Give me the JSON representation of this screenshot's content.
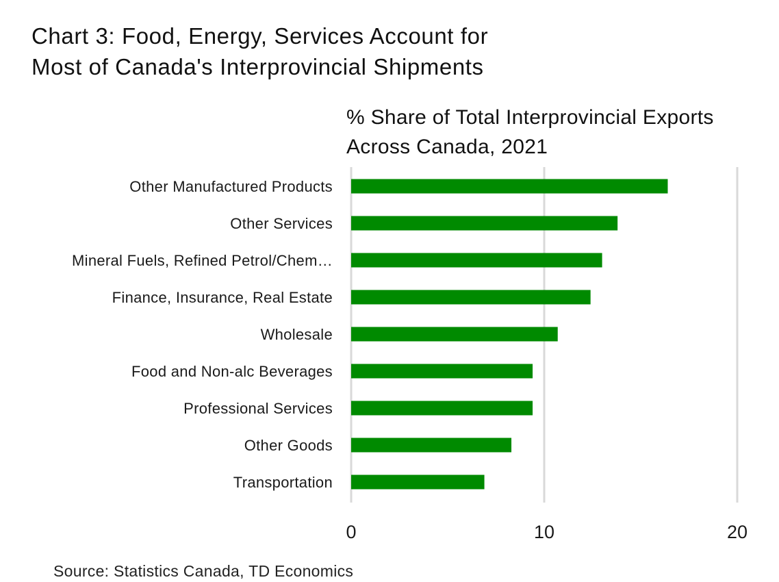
{
  "title_lines": [
    "Chart 3: Food, Energy, Services Account for",
    "Most of Canada's Interprovincial Shipments"
  ],
  "subtitle_lines": [
    "% Share of Total Interprovincial Exports",
    "Across Canada, 2021"
  ],
  "source": "Source: Statistics Canada, TD Economics",
  "colors": {
    "bar": "#008a00",
    "grid": "#d9d9d9",
    "text": "#1a1a1a"
  },
  "chart_data": {
    "type": "bar",
    "orientation": "horizontal",
    "title": "Chart 3: Food, Energy, Services Account for Most of Canada's Interprovincial Shipments",
    "subtitle": "% Share of Total Interprovincial Exports Across Canada, 2021",
    "xlabel": "",
    "ylabel": "",
    "xlim": [
      0,
      20
    ],
    "xticks": [
      0,
      10,
      20
    ],
    "grid": true,
    "categories": [
      "Other Manufactured Products",
      "Other Services",
      "Mineral Fuels, Refined Petrol/Chem…",
      "Finance, Insurance, Real Estate",
      "Wholesale",
      "Food and Non-alc Beverages",
      "Professional Services",
      "Other Goods",
      "Transportation"
    ],
    "values": [
      16.4,
      13.8,
      13.0,
      12.4,
      10.7,
      9.4,
      9.4,
      8.3,
      6.9
    ]
  }
}
